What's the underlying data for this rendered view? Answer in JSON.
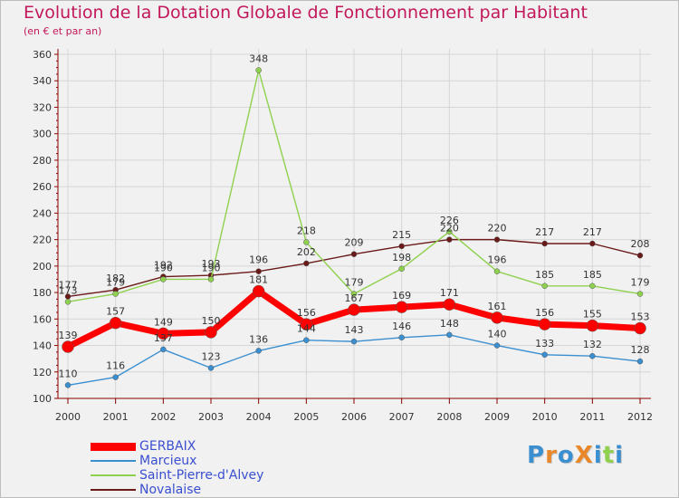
{
  "chart_data": {
    "type": "line",
    "title": "Evolution de la Dotation Globale de Fonctionnement par Habitant",
    "subtitle": "(en € et par an)",
    "xlabel": "",
    "ylabel": "",
    "ylim": [
      100,
      360
    ],
    "yticks": [
      100,
      120,
      140,
      160,
      180,
      200,
      220,
      240,
      260,
      280,
      300,
      320,
      340,
      360
    ],
    "grid": true,
    "categories": [
      "2000",
      "2001",
      "2002",
      "2003",
      "2004",
      "2005",
      "2006",
      "2007",
      "2008",
      "2009",
      "2010",
      "2011",
      "2012"
    ],
    "series": [
      {
        "name": "Novalaise",
        "color": "#6b1a1a",
        "values": [
          177,
          182,
          192,
          193,
          196,
          202,
          209,
          215,
          220,
          220,
          217,
          217,
          208
        ]
      },
      {
        "name": "Saint-Pierre-d'Alvey",
        "color": "#8fd14f",
        "values": [
          173,
          179,
          190,
          190,
          348,
          218,
          179,
          198,
          226,
          196,
          185,
          185,
          179
        ]
      },
      {
        "name": "Marcieux",
        "color": "#3a8fd1",
        "values": [
          110,
          116,
          137,
          123,
          136,
          144,
          143,
          146,
          148,
          140,
          133,
          132,
          128
        ]
      },
      {
        "name": "GERBAIX",
        "color": "#ff0000",
        "values": [
          139,
          157,
          149,
          150,
          181,
          156,
          167,
          169,
          171,
          161,
          156,
          155,
          153
        ]
      }
    ],
    "legend": [
      "GERBAIX",
      "Marcieux",
      "Saint-Pierre-d'Alvey",
      "Novalaise"
    ]
  },
  "logo": {
    "text": "ProXiti",
    "letters": [
      "P",
      "r",
      "o",
      "X",
      "i",
      "t",
      "i"
    ]
  },
  "colors": {
    "title": "#c2185b",
    "axis": "#8b0000",
    "grid": "#d6d6d6",
    "legend_text": "#3a4fd0",
    "logo": [
      "#3a8fd1",
      "#e8882a",
      "#3a8fd1",
      "#e8882a",
      "#3a8fd1",
      "#8fd14f",
      "#3a8fd1"
    ]
  }
}
